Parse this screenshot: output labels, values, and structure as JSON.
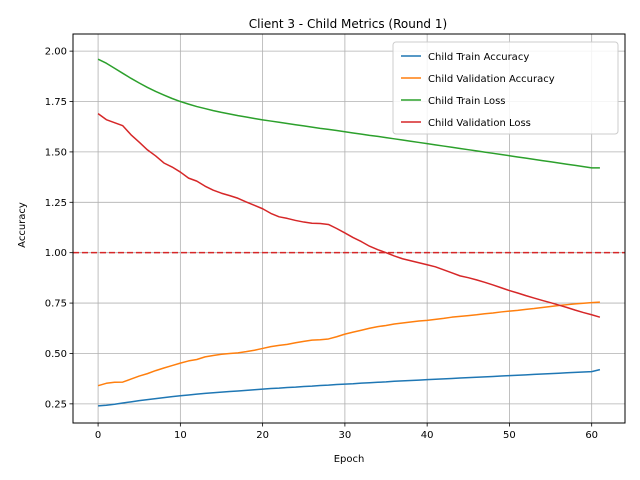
{
  "chart_data": {
    "type": "line",
    "title": "Client 3 - Child Metrics (Round 1)",
    "xlabel": "Epoch",
    "ylabel": "Accuracy",
    "xlim": [
      -3.05,
      64.05
    ],
    "ylim": [
      0.155,
      2.085
    ],
    "xticks": [
      0,
      10,
      20,
      30,
      40,
      50,
      60
    ],
    "yticks": [
      0.25,
      0.5,
      0.75,
      1.0,
      1.25,
      1.5,
      1.75,
      2.0
    ],
    "ytick_labels": [
      "0.25",
      "0.50",
      "0.75",
      "1.00",
      "1.25",
      "1.50",
      "1.75",
      "2.00"
    ],
    "grid": true,
    "legend_position": "top-right",
    "reference_line": {
      "y": 1.0,
      "color": "#d62728",
      "style": "dashed"
    },
    "x": [
      0,
      1,
      2,
      3,
      4,
      5,
      6,
      7,
      8,
      9,
      10,
      11,
      12,
      13,
      14,
      15,
      16,
      17,
      18,
      19,
      20,
      21,
      22,
      23,
      24,
      25,
      26,
      27,
      28,
      29,
      30,
      31,
      32,
      33,
      34,
      35,
      36,
      37,
      38,
      39,
      40,
      41,
      42,
      43,
      44,
      45,
      46,
      47,
      48,
      49,
      50,
      51,
      52,
      53,
      54,
      55,
      56,
      57,
      58,
      59,
      60,
      61
    ],
    "series": [
      {
        "name": "Child Train Accuracy",
        "color": "#1f77b4",
        "values": [
          0.24,
          0.243,
          0.248,
          0.254,
          0.26,
          0.266,
          0.271,
          0.276,
          0.281,
          0.286,
          0.29,
          0.294,
          0.298,
          0.302,
          0.305,
          0.308,
          0.311,
          0.314,
          0.317,
          0.32,
          0.323,
          0.326,
          0.328,
          0.331,
          0.333,
          0.336,
          0.338,
          0.341,
          0.343,
          0.346,
          0.348,
          0.35,
          0.353,
          0.355,
          0.357,
          0.359,
          0.362,
          0.364,
          0.366,
          0.368,
          0.37,
          0.372,
          0.374,
          0.376,
          0.378,
          0.38,
          0.382,
          0.384,
          0.386,
          0.388,
          0.39,
          0.392,
          0.394,
          0.396,
          0.398,
          0.4,
          0.402,
          0.404,
          0.406,
          0.408,
          0.41,
          0.42
        ]
      },
      {
        "name": "Child Validation Accuracy",
        "color": "#ff7f0e",
        "values": [
          0.34,
          0.352,
          0.357,
          0.358,
          0.373,
          0.388,
          0.4,
          0.415,
          0.428,
          0.44,
          0.452,
          0.463,
          0.47,
          0.483,
          0.49,
          0.496,
          0.5,
          0.503,
          0.509,
          0.516,
          0.525,
          0.534,
          0.54,
          0.545,
          0.553,
          0.56,
          0.566,
          0.568,
          0.572,
          0.583,
          0.596,
          0.606,
          0.615,
          0.625,
          0.633,
          0.639,
          0.646,
          0.651,
          0.656,
          0.661,
          0.664,
          0.669,
          0.674,
          0.68,
          0.684,
          0.688,
          0.692,
          0.697,
          0.701,
          0.706,
          0.71,
          0.714,
          0.719,
          0.723,
          0.728,
          0.733,
          0.738,
          0.742,
          0.746,
          0.749,
          0.752,
          0.755
        ]
      },
      {
        "name": "Child Train Loss",
        "color": "#2ca02c",
        "values": [
          1.96,
          1.94,
          1.915,
          1.89,
          1.865,
          1.842,
          1.82,
          1.8,
          1.782,
          1.765,
          1.75,
          1.737,
          1.725,
          1.715,
          1.705,
          1.696,
          1.688,
          1.68,
          1.673,
          1.666,
          1.659,
          1.653,
          1.647,
          1.641,
          1.635,
          1.629,
          1.623,
          1.617,
          1.612,
          1.606,
          1.6,
          1.594,
          1.588,
          1.582,
          1.577,
          1.571,
          1.565,
          1.559,
          1.553,
          1.547,
          1.541,
          1.535,
          1.529,
          1.523,
          1.517,
          1.511,
          1.505,
          1.499,
          1.493,
          1.487,
          1.481,
          1.475,
          1.469,
          1.463,
          1.457,
          1.451,
          1.445,
          1.439,
          1.433,
          1.427,
          1.421,
          1.421
        ]
      },
      {
        "name": "Child Validation Loss",
        "color": "#d62728",
        "values": [
          1.69,
          1.66,
          1.645,
          1.63,
          1.585,
          1.548,
          1.51,
          1.48,
          1.445,
          1.425,
          1.4,
          1.37,
          1.355,
          1.33,
          1.31,
          1.295,
          1.283,
          1.27,
          1.252,
          1.235,
          1.218,
          1.195,
          1.178,
          1.17,
          1.16,
          1.152,
          1.146,
          1.145,
          1.14,
          1.12,
          1.098,
          1.075,
          1.055,
          1.032,
          1.015,
          1.0,
          0.984,
          0.97,
          0.96,
          0.95,
          0.94,
          0.93,
          0.915,
          0.9,
          0.885,
          0.876,
          0.865,
          0.853,
          0.84,
          0.826,
          0.812,
          0.8,
          0.787,
          0.775,
          0.763,
          0.752,
          0.74,
          0.728,
          0.715,
          0.703,
          0.692,
          0.68
        ]
      }
    ]
  }
}
